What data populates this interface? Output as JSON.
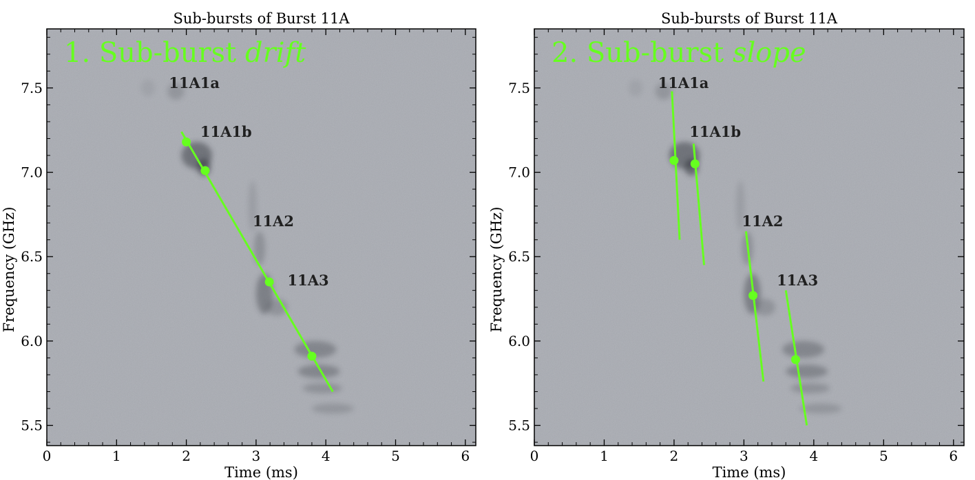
{
  "figure": {
    "background": "#ffffff"
  },
  "style": {
    "accent": "#66ff1f",
    "plot_bg": "#a9acb3",
    "label_color": "#202020"
  },
  "chart_data": [
    {
      "type": "scatter",
      "title": "Sub-bursts of Burst 11A",
      "xlabel": "Time (ms)",
      "ylabel": "Frequency (GHz)",
      "xlim": [
        0,
        6.15
      ],
      "ylim": [
        5.38,
        7.85
      ],
      "xticks": [
        0,
        1,
        2,
        3,
        4,
        5,
        6
      ],
      "xtick_labels": [
        "0",
        "1",
        "2",
        "3",
        "4",
        "5",
        "6"
      ],
      "yticks": [
        5.5,
        6.0,
        6.5,
        7.0,
        7.5
      ],
      "ytick_labels": [
        "5.5",
        "6.0",
        "6.5",
        "7.0",
        "7.5"
      ],
      "panel_label": {
        "prefix": "1. Sub-burst ",
        "emph": "drift"
      },
      "labels": [
        {
          "text": "11A1a",
          "x": 1.75,
          "y": 7.5
        },
        {
          "text": "11A1b",
          "x": 2.2,
          "y": 7.21
        },
        {
          "text": "11A2",
          "x": 2.95,
          "y": 6.68
        },
        {
          "text": "11A3",
          "x": 3.45,
          "y": 6.33
        }
      ],
      "points": [
        {
          "x": 2.0,
          "y": 7.18
        },
        {
          "x": 2.27,
          "y": 7.01
        },
        {
          "x": 3.19,
          "y": 6.35
        },
        {
          "x": 3.8,
          "y": 5.91
        }
      ],
      "lines": [
        {
          "x": [
            1.93,
            4.1
          ],
          "y": [
            7.24,
            5.7
          ]
        }
      ]
    },
    {
      "type": "scatter",
      "title": "Sub-bursts of Burst 11A",
      "xlabel": "Time (ms)",
      "ylabel": "Frequency (GHz)",
      "xlim": [
        0,
        6.15
      ],
      "ylim": [
        5.38,
        7.85
      ],
      "xticks": [
        0,
        1,
        2,
        3,
        4,
        5,
        6
      ],
      "xtick_labels": [
        "0",
        "1",
        "2",
        "3",
        "4",
        "5",
        "6"
      ],
      "yticks": [
        5.5,
        6.0,
        6.5,
        7.0,
        7.5
      ],
      "ytick_labels": [
        "5.5",
        "6.0",
        "6.5",
        "7.0",
        "7.5"
      ],
      "panel_label": {
        "prefix": "2. Sub-burst ",
        "emph": "slope"
      },
      "labels": [
        {
          "text": "11A1a",
          "x": 1.77,
          "y": 7.5
        },
        {
          "text": "11A1b",
          "x": 2.22,
          "y": 7.21
        },
        {
          "text": "11A2",
          "x": 2.97,
          "y": 6.68
        },
        {
          "text": "11A3",
          "x": 3.47,
          "y": 6.33
        }
      ],
      "points": [
        {
          "x": 2.0,
          "y": 7.07
        },
        {
          "x": 2.3,
          "y": 7.05
        },
        {
          "x": 3.13,
          "y": 6.27
        },
        {
          "x": 3.74,
          "y": 5.89
        }
      ],
      "lines": [
        {
          "x": [
            1.97,
            2.08
          ],
          "y": [
            7.48,
            6.6
          ]
        },
        {
          "x": [
            2.28,
            2.43
          ],
          "y": [
            7.17,
            6.45
          ]
        },
        {
          "x": [
            3.03,
            3.28
          ],
          "y": [
            6.65,
            5.76
          ]
        },
        {
          "x": [
            3.6,
            3.9
          ],
          "y": [
            6.3,
            5.5
          ]
        }
      ]
    }
  ]
}
